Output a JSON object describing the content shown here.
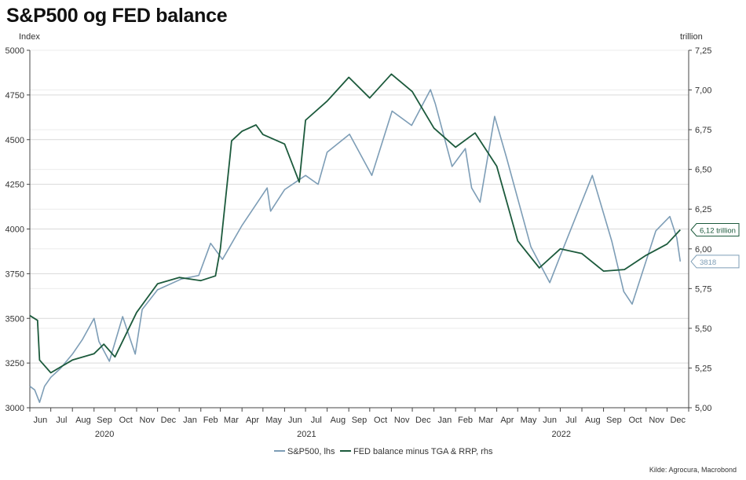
{
  "title": "S&P500 og FED balance",
  "source": "Kilde: Agrocura, Macrobond",
  "colors": {
    "sp500": "#7d9db6",
    "fed": "#1c5a3c",
    "grid": "#d9d9d9",
    "axis": "#444444"
  },
  "chart_data": {
    "type": "line",
    "title": "S&P500 og FED balance",
    "left_axis": {
      "label": "Index",
      "ylim": [
        3000,
        5000
      ],
      "ticks": [
        "3000",
        "3250",
        "3500",
        "3750",
        "4000",
        "4250",
        "4500",
        "4750",
        "5000"
      ]
    },
    "right_axis": {
      "label": "trillion",
      "ylim": [
        5.0,
        7.25
      ],
      "ticks": [
        "5,00",
        "5,25",
        "5,50",
        "5,75",
        "6,00",
        "6,25",
        "6,50",
        "6,75",
        "7,00",
        "7,25"
      ]
    },
    "x_axis": {
      "range": [
        "2020-06-01",
        "2023-01-01"
      ],
      "months": [
        "Jun",
        "Jul",
        "Aug",
        "Sep",
        "Oct",
        "Nov",
        "Dec",
        "Jan",
        "Feb",
        "Mar",
        "Apr",
        "May",
        "Jun",
        "Jul",
        "Aug",
        "Sep",
        "Oct",
        "Nov",
        "Dec",
        "Jan",
        "Feb",
        "Mar",
        "Apr",
        "May",
        "Jun",
        "Jul",
        "Aug",
        "Sep",
        "Oct",
        "Nov",
        "Dec"
      ],
      "years": [
        "2020",
        "2021",
        "2022"
      ]
    },
    "grid": true,
    "legend_position": "bottom",
    "series": [
      {
        "name": "S&P500, lhs",
        "axis": "left",
        "x": [
          "2020-06-01",
          "2020-06-08",
          "2020-06-15",
          "2020-06-22",
          "2020-07-01",
          "2020-07-15",
          "2020-08-01",
          "2020-08-15",
          "2020-09-01",
          "2020-09-08",
          "2020-09-23",
          "2020-10-12",
          "2020-10-30",
          "2020-11-09",
          "2020-12-01",
          "2021-01-04",
          "2021-01-29",
          "2021-02-15",
          "2021-03-04",
          "2021-04-01",
          "2021-05-07",
          "2021-05-12",
          "2021-06-01",
          "2021-07-01",
          "2021-07-19",
          "2021-08-01",
          "2021-09-02",
          "2021-10-04",
          "2021-11-02",
          "2021-11-30",
          "2021-12-27",
          "2022-01-03",
          "2022-01-27",
          "2022-02-15",
          "2022-02-24",
          "2022-03-08",
          "2022-03-29",
          "2022-04-15",
          "2022-05-20",
          "2022-06-16",
          "2022-07-01",
          "2022-08-16",
          "2022-09-13",
          "2022-09-30",
          "2022-10-12",
          "2022-11-15",
          "2022-12-05",
          "2022-12-15",
          "2022-12-20"
        ],
        "values": [
          3120,
          3100,
          3030,
          3120,
          3170,
          3220,
          3300,
          3380,
          3500,
          3370,
          3260,
          3510,
          3300,
          3550,
          3660,
          3720,
          3740,
          3920,
          3830,
          4020,
          4230,
          4100,
          4220,
          4300,
          4250,
          4430,
          4530,
          4300,
          4660,
          4580,
          4780,
          4700,
          4350,
          4450,
          4230,
          4150,
          4630,
          4400,
          3900,
          3700,
          3850,
          4300,
          3930,
          3650,
          3580,
          3990,
          4070,
          3950,
          3818
        ]
      },
      {
        "name": "FED balance minus TGA & RRP, rhs",
        "axis": "right",
        "x": [
          "2020-06-01",
          "2020-06-12",
          "2020-06-15",
          "2020-07-01",
          "2020-08-01",
          "2020-09-01",
          "2020-09-15",
          "2020-10-01",
          "2020-11-01",
          "2020-12-01",
          "2021-01-01",
          "2021-02-01",
          "2021-02-22",
          "2021-03-01",
          "2021-03-15",
          "2021-03-17",
          "2021-04-01",
          "2021-04-21",
          "2021-05-01",
          "2021-06-01",
          "2021-06-22",
          "2021-07-01",
          "2021-08-01",
          "2021-09-01",
          "2021-10-01",
          "2021-11-01",
          "2021-12-01",
          "2022-01-01",
          "2022-02-01",
          "2022-03-01",
          "2022-04-01",
          "2022-05-01",
          "2022-06-01",
          "2022-07-01",
          "2022-08-01",
          "2022-09-01",
          "2022-10-01",
          "2022-11-01",
          "2022-12-01",
          "2022-12-20"
        ],
        "values": [
          5.58,
          5.55,
          5.3,
          5.22,
          5.3,
          5.34,
          5.4,
          5.32,
          5.6,
          5.78,
          5.82,
          5.8,
          5.83,
          6.0,
          6.59,
          6.68,
          6.74,
          6.78,
          6.72,
          6.66,
          6.42,
          6.81,
          6.93,
          7.08,
          6.95,
          7.1,
          6.99,
          6.76,
          6.64,
          6.73,
          6.52,
          6.05,
          5.88,
          6.0,
          5.97,
          5.86,
          5.87,
          5.96,
          6.03,
          6.12
        ]
      }
    ],
    "end_labels": {
      "fed": "6,12 trillion",
      "sp500": "3818"
    }
  }
}
